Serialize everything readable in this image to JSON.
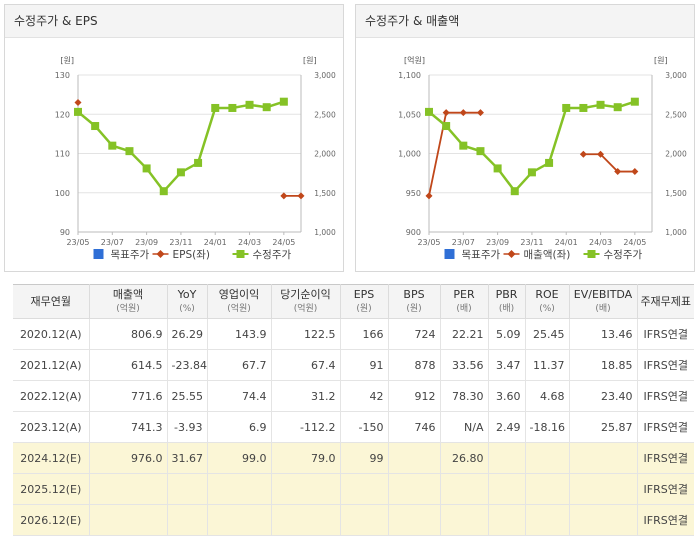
{
  "chart_data": [
    {
      "type": "line",
      "title": "수정주가 & EPS",
      "left_unit": "[원]",
      "right_unit": "[원]",
      "x_labels": [
        "23/05",
        "23/07",
        "23/09",
        "23/11",
        "24/01",
        "24/03",
        "24/05"
      ],
      "left_axis": {
        "ticks": [
          "90",
          "100",
          "110",
          "120",
          "130"
        ],
        "range": [
          90,
          130
        ]
      },
      "right_axis": {
        "ticks": [
          "1,000",
          "1,500",
          "2,000",
          "2,500",
          "3,000"
        ],
        "range": [
          1000,
          3000
        ]
      },
      "series": [
        {
          "name": "목표주가",
          "axis": "right",
          "color": "#2f6fd6",
          "marker": "square",
          "values": []
        },
        {
          "name": "EPS(좌)",
          "axis": "left",
          "color": "#c0471a",
          "marker": "diamond",
          "values": [
            123,
            null,
            null,
            null,
            null,
            null,
            null,
            null,
            null,
            null,
            null,
            null,
            99.2,
            99.2
          ]
        },
        {
          "name": "수정주가",
          "axis": "right",
          "color": "#85c226",
          "marker": "square",
          "values": [
            2530,
            2350,
            2100,
            2030,
            1810,
            1520,
            1760,
            1880,
            2580,
            2580,
            2620,
            2590,
            2660,
            null
          ]
        }
      ]
    },
    {
      "type": "line",
      "title": "수정주가 & 매출액",
      "left_unit": "[억원]",
      "right_unit": "[원]",
      "x_labels": [
        "23/05",
        "23/07",
        "23/09",
        "23/11",
        "24/01",
        "24/03",
        "24/05"
      ],
      "left_axis": {
        "ticks": [
          "900",
          "950",
          "1,000",
          "1,050",
          "1,100"
        ],
        "range": [
          900,
          1100
        ]
      },
      "right_axis": {
        "ticks": [
          "1,000",
          "1,500",
          "2,000",
          "2,500",
          "3,000"
        ],
        "range": [
          1000,
          3000
        ]
      },
      "series": [
        {
          "name": "목표주가",
          "axis": "right",
          "color": "#2f6fd6",
          "marker": "square",
          "values": []
        },
        {
          "name": "매출액(좌)",
          "axis": "left",
          "color": "#c0471a",
          "marker": "diamond",
          "values": [
            946,
            1052,
            1052,
            1052,
            null,
            null,
            null,
            null,
            null,
            999,
            999,
            977,
            977,
            null
          ]
        },
        {
          "name": "수정주가",
          "axis": "right",
          "color": "#85c226",
          "marker": "square",
          "values": [
            2530,
            2350,
            2100,
            2030,
            1810,
            1520,
            1760,
            1880,
            2580,
            2580,
            2620,
            2590,
            2660,
            null
          ]
        }
      ]
    }
  ],
  "table": {
    "headers": [
      {
        "label": "재무연월",
        "unit": ""
      },
      {
        "label": "매출액",
        "unit": "(억원)"
      },
      {
        "label": "YoY",
        "unit": "(%)"
      },
      {
        "label": "영업이익",
        "unit": "(억원)"
      },
      {
        "label": "당기순이익",
        "unit": "(억원)"
      },
      {
        "label": "EPS",
        "unit": "(원)"
      },
      {
        "label": "BPS",
        "unit": "(원)"
      },
      {
        "label": "PER",
        "unit": "(배)"
      },
      {
        "label": "PBR",
        "unit": "(배)"
      },
      {
        "label": "ROE",
        "unit": "(%)"
      },
      {
        "label": "EV/EBITDA",
        "unit": "(배)"
      },
      {
        "label": "주재무제표",
        "unit": ""
      }
    ],
    "rows": [
      {
        "estimate": false,
        "cells": [
          "2020.12(A)",
          "806.9",
          "26.29",
          "143.9",
          "122.5",
          "166",
          "724",
          "22.21",
          "5.09",
          "25.45",
          "13.46",
          "IFRS연결"
        ]
      },
      {
        "estimate": false,
        "cells": [
          "2021.12(A)",
          "614.5",
          "-23.84",
          "67.7",
          "67.4",
          "91",
          "878",
          "33.56",
          "3.47",
          "11.37",
          "18.85",
          "IFRS연결"
        ]
      },
      {
        "estimate": false,
        "cells": [
          "2022.12(A)",
          "771.6",
          "25.55",
          "74.4",
          "31.2",
          "42",
          "912",
          "78.30",
          "3.60",
          "4.68",
          "23.40",
          "IFRS연결"
        ]
      },
      {
        "estimate": false,
        "cells": [
          "2023.12(A)",
          "741.3",
          "-3.93",
          "6.9",
          "-112.2",
          "-150",
          "746",
          "N/A",
          "2.49",
          "-18.16",
          "25.87",
          "IFRS연결"
        ]
      },
      {
        "estimate": true,
        "cells": [
          "2024.12(E)",
          "976.0",
          "31.67",
          "99.0",
          "79.0",
          "99",
          "",
          "26.80",
          "",
          "",
          "",
          "IFRS연결"
        ]
      },
      {
        "estimate": true,
        "cells": [
          "2025.12(E)",
          "",
          "",
          "",
          "",
          "",
          "",
          "",
          "",
          "",
          "",
          "IFRS연결"
        ]
      },
      {
        "estimate": true,
        "cells": [
          "2026.12(E)",
          "",
          "",
          "",
          "",
          "",
          "",
          "",
          "",
          "",
          "",
          "IFRS연결"
        ]
      }
    ]
  }
}
